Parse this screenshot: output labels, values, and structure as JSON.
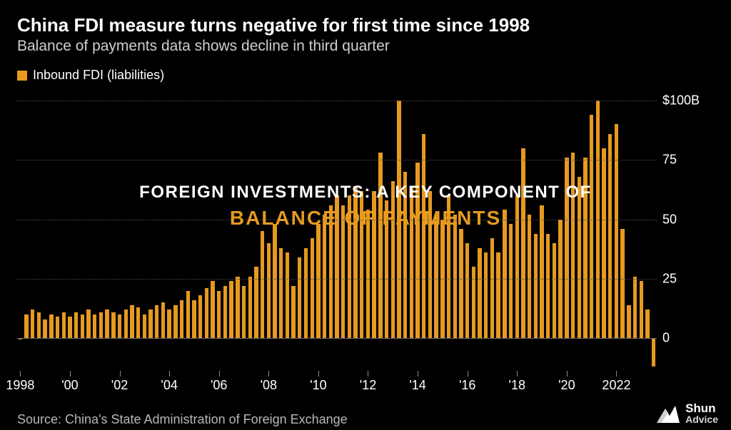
{
  "header": {
    "title": "China FDI measure turns negative for first time since 1998",
    "subtitle": "Balance of payments data shows decline in third quarter"
  },
  "legend": {
    "swatch_color": "#e69a1f",
    "label": "Inbound FDI (liabilities)"
  },
  "chart": {
    "type": "bar",
    "bar_color": "#e69a1f",
    "background_color": "#000000",
    "grid_color": "#4a4a4a",
    "baseline_color": "#6a6a6a",
    "axis_text_color": "#ffffff",
    "y": {
      "min": -15,
      "max": 105,
      "ticks": [
        0,
        25,
        50,
        75,
        100
      ],
      "tick_labels": [
        "0",
        "25",
        "50",
        "75",
        "$100B"
      ],
      "label_fontsize": 18
    },
    "x": {
      "start_year": 1998,
      "quarters_per_year": 4,
      "tick_years": [
        1998,
        2000,
        2002,
        2004,
        2006,
        2008,
        2010,
        2012,
        2014,
        2016,
        2018,
        2020,
        2022
      ],
      "tick_labels": [
        "1998",
        "'00",
        "'02",
        "'04",
        "'06",
        "'08",
        "'10",
        "'12",
        "'14",
        "'16",
        "'18",
        "'20",
        "2022"
      ],
      "label_fontsize": 18
    },
    "bar_width_ratio": 0.62,
    "values": [
      -0.5,
      10,
      12,
      11,
      8,
      10,
      9,
      11,
      9,
      11,
      10,
      12,
      10,
      11,
      12,
      11,
      10,
      12,
      14,
      13,
      10,
      12,
      14,
      15,
      12,
      14,
      16,
      20,
      16,
      18,
      21,
      24,
      20,
      22,
      24,
      26,
      22,
      26,
      30,
      45,
      40,
      48,
      38,
      36,
      22,
      34,
      38,
      42,
      48,
      52,
      56,
      60,
      56,
      60,
      64,
      62,
      54,
      62,
      78,
      58,
      66,
      100,
      70,
      64,
      74,
      86,
      62,
      52,
      50,
      60,
      52,
      46,
      40,
      30,
      38,
      36,
      42,
      36,
      54,
      48,
      60,
      80,
      52,
      44,
      56,
      44,
      40,
      50,
      76,
      78,
      68,
      76,
      94,
      100,
      80,
      86,
      90,
      46,
      14,
      26,
      24,
      12,
      -12
    ]
  },
  "overlay": {
    "line1": "FOREIGN INVESTMENTS: A KEY COMPONENT OF",
    "line2": "BALANCE OF PAYMENTS",
    "line1_color": "#ffffff",
    "line2_color": "#e69a1f",
    "line1_fontsize": 24,
    "line2_fontsize": 28
  },
  "source": {
    "text": "Source: China's State Administration of Foreign Exchange",
    "color": "#b8b8b8",
    "fontsize": 18
  },
  "brand": {
    "name_line1": "Shun",
    "name_line2": "Advice",
    "icon_color": "#ffffff"
  }
}
